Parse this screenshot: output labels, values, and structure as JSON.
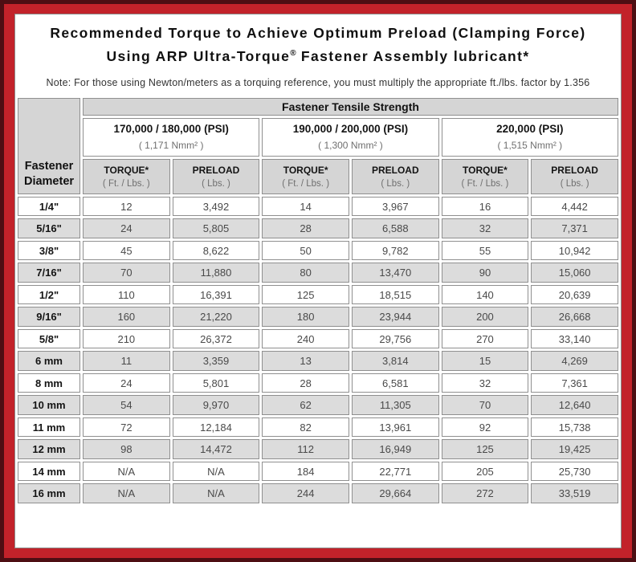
{
  "title": {
    "line1": "Recommended Torque to Achieve Optimum Preload (Clamping Force)",
    "line2_pre": "Using ARP Ultra-Torque",
    "line2_reg": "®",
    "line2_post": " Fastener Assembly lubricant*"
  },
  "note": "Note: For those using Newton/meters as a torquing reference, you must multiply the appropriate ft./lbs. factor by 1.356",
  "colors": {
    "outer_border": "#4d0e13",
    "frame_red": "#c2222a",
    "header_gray": "#d5d5d5",
    "alt_row_gray": "#dcdcdc",
    "cell_border": "#8f8f8f"
  },
  "table": {
    "corner_line1": "Fastener",
    "corner_line2": "Diameter",
    "tensile_header": "Fastener Tensile Strength",
    "strength_groups": [
      {
        "psi": "170,000 / 180,000 (PSI)",
        "nmm": "( 1,171 Nmm² )"
      },
      {
        "psi": "190,000 / 200,000 (PSI)",
        "nmm": "( 1,300 Nmm² )"
      },
      {
        "psi": "220,000 (PSI)",
        "nmm": "( 1,515 Nmm² )"
      }
    ],
    "col_headers": {
      "torque_label": "TORQUE*",
      "torque_sub": "( Ft. / Lbs. )",
      "preload_label": "PRELOAD",
      "preload_sub": "( Lbs. )"
    },
    "rows": [
      {
        "diameter": "1/4\"",
        "values": [
          "12",
          "3,492",
          "14",
          "3,967",
          "16",
          "4,442"
        ]
      },
      {
        "diameter": "5/16\"",
        "values": [
          "24",
          "5,805",
          "28",
          "6,588",
          "32",
          "7,371"
        ]
      },
      {
        "diameter": "3/8\"",
        "values": [
          "45",
          "8,622",
          "50",
          "9,782",
          "55",
          "10,942"
        ]
      },
      {
        "diameter": "7/16\"",
        "values": [
          "70",
          "11,880",
          "80",
          "13,470",
          "90",
          "15,060"
        ]
      },
      {
        "diameter": "1/2\"",
        "values": [
          "110",
          "16,391",
          "125",
          "18,515",
          "140",
          "20,639"
        ]
      },
      {
        "diameter": "9/16\"",
        "values": [
          "160",
          "21,220",
          "180",
          "23,944",
          "200",
          "26,668"
        ]
      },
      {
        "diameter": "5/8\"",
        "values": [
          "210",
          "26,372",
          "240",
          "29,756",
          "270",
          "33,140"
        ]
      },
      {
        "diameter": "6 mm",
        "values": [
          "11",
          "3,359",
          "13",
          "3,814",
          "15",
          "4,269"
        ]
      },
      {
        "diameter": "8 mm",
        "values": [
          "24",
          "5,801",
          "28",
          "6,581",
          "32",
          "7,361"
        ]
      },
      {
        "diameter": "10 mm",
        "values": [
          "54",
          "9,970",
          "62",
          "11,305",
          "70",
          "12,640"
        ]
      },
      {
        "diameter": "11 mm",
        "values": [
          "72",
          "12,184",
          "82",
          "13,961",
          "92",
          "15,738"
        ]
      },
      {
        "diameter": "12 mm",
        "values": [
          "98",
          "14,472",
          "112",
          "16,949",
          "125",
          "19,425"
        ]
      },
      {
        "diameter": "14 mm",
        "values": [
          "N/A",
          "N/A",
          "184",
          "22,771",
          "205",
          "25,730"
        ]
      },
      {
        "diameter": "16 mm",
        "values": [
          "N/A",
          "N/A",
          "244",
          "29,664",
          "272",
          "33,519"
        ]
      }
    ]
  }
}
